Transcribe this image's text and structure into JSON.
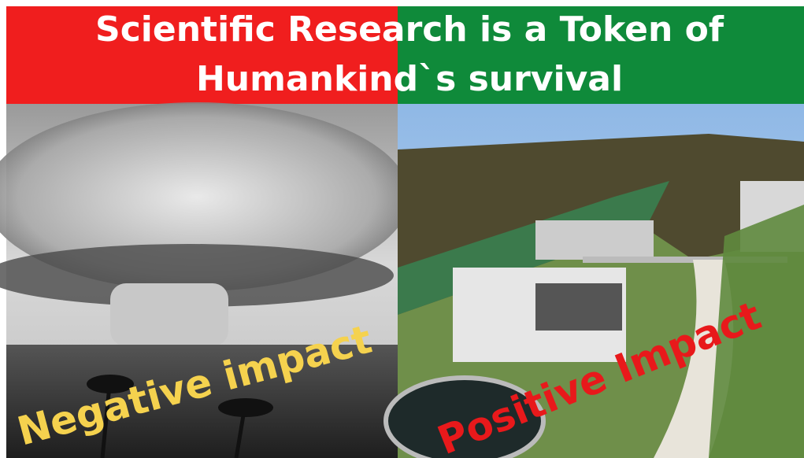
{
  "header": {
    "title_lines": [
      "Scientific Research is a Token of",
      "Humankind`s survival"
    ]
  },
  "panels": [
    {
      "label": "Negative impact"
    },
    {
      "label": "Positive Impact"
    }
  ]
}
